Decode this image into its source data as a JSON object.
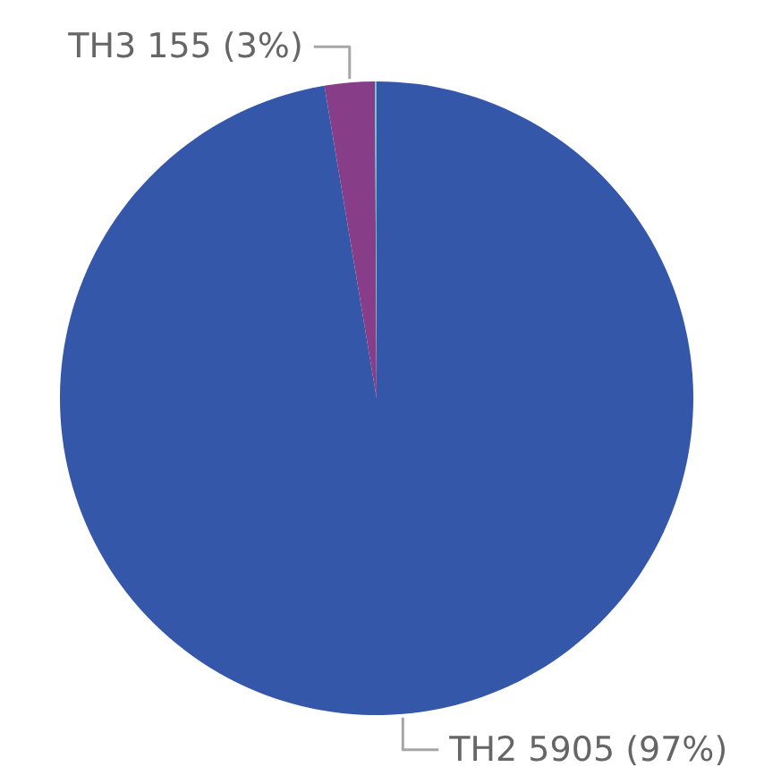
{
  "chart_data": {
    "type": "pie",
    "categories": [
      "TH2",
      "TH3",
      null
    ],
    "values": [
      5905,
      155,
      5
    ],
    "colors": [
      "#3457aa",
      "#883d89",
      "#5cc6c8"
    ],
    "value_labels": [
      "5905 (97%)",
      "155 (3%)",
      null
    ]
  }
}
